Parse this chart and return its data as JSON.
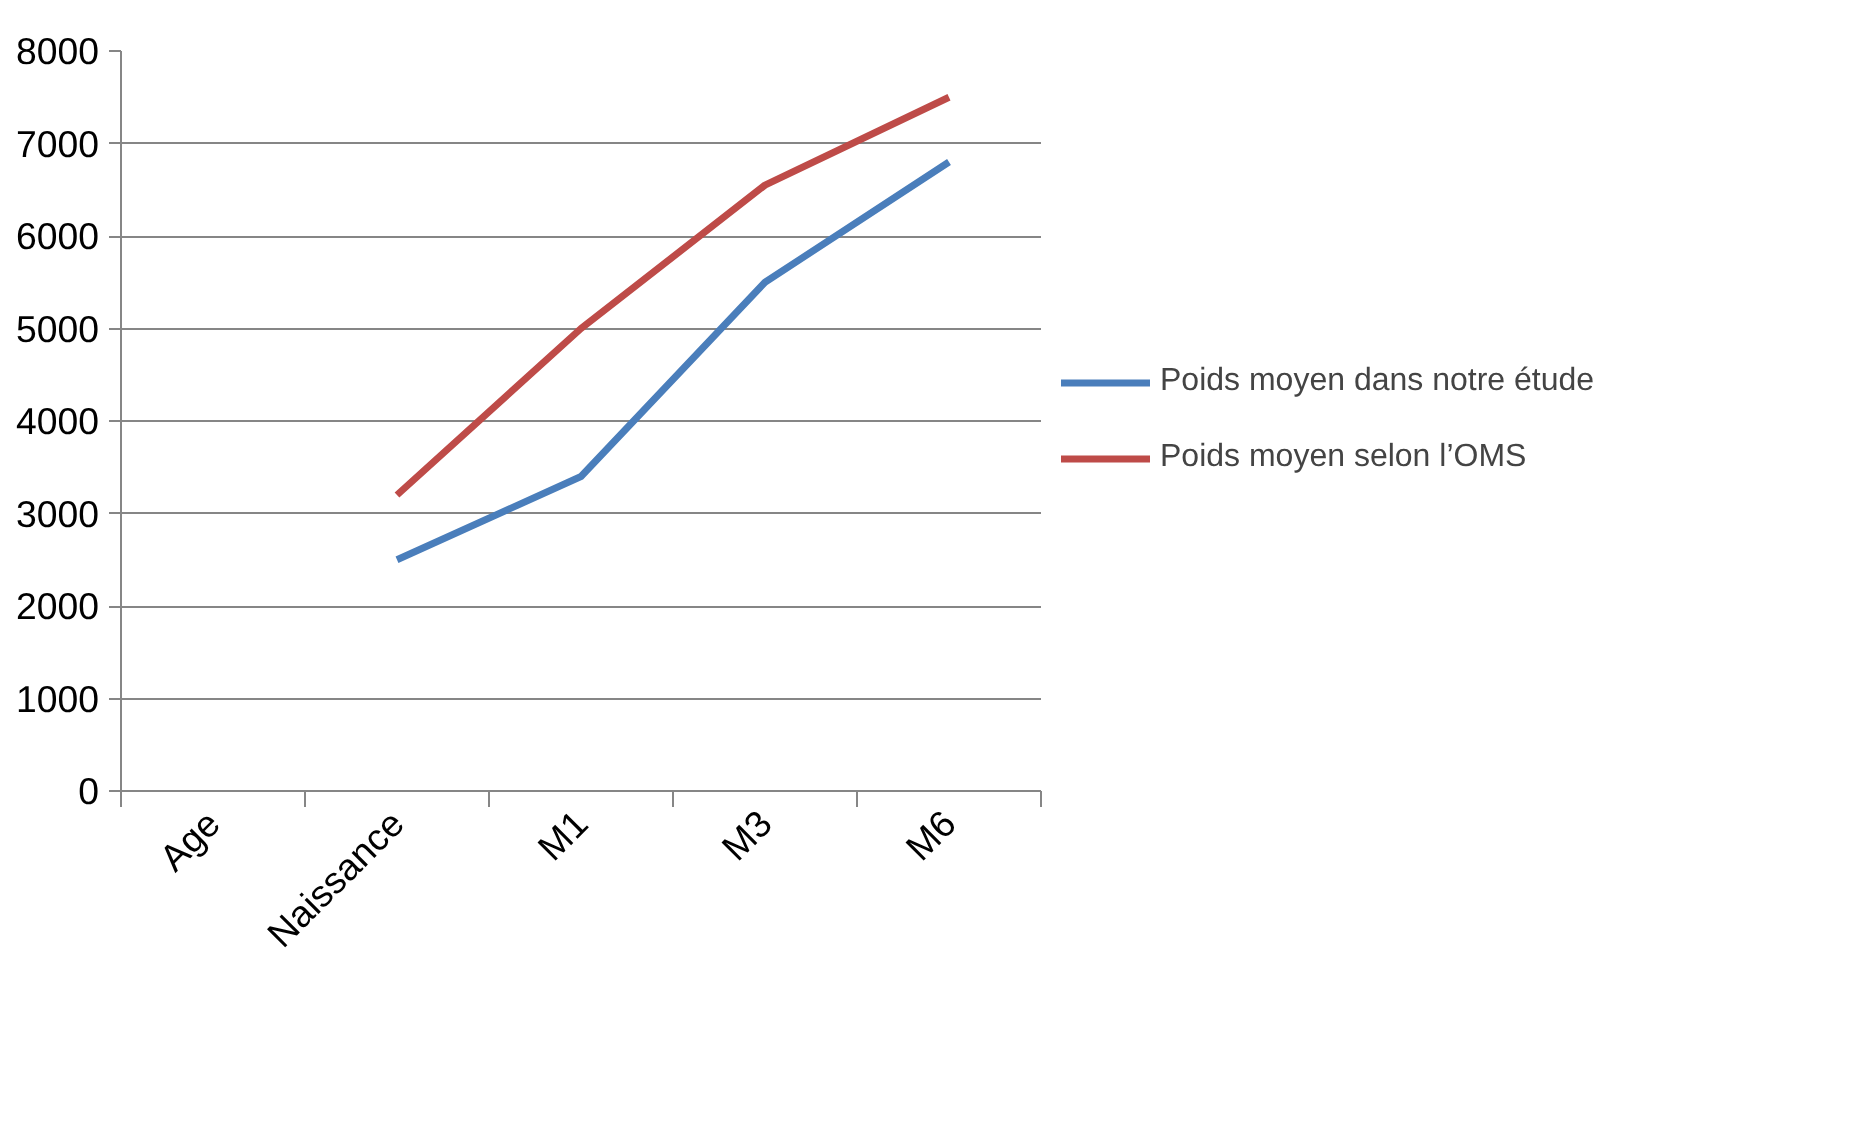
{
  "chart_data": {
    "type": "line",
    "categories": [
      "Age",
      "Naissance",
      "M1",
      "M3",
      "M6"
    ],
    "series": [
      {
        "name": "Poids moyen dans notre étude",
        "color": "#4a7ebb",
        "values": [
          null,
          2500,
          3400,
          5500,
          6800
        ]
      },
      {
        "name": "Poids moyen selon l’OMS",
        "color": "#be4b48",
        "values": [
          null,
          3200,
          5000,
          6550,
          7500
        ]
      }
    ],
    "ylim": [
      0,
      8000
    ],
    "yticks": [
      0,
      1000,
      2000,
      3000,
      4000,
      5000,
      6000,
      7000,
      8000
    ],
    "grid": "y",
    "legend": "right",
    "marker": "none",
    "line_style": "solid"
  }
}
